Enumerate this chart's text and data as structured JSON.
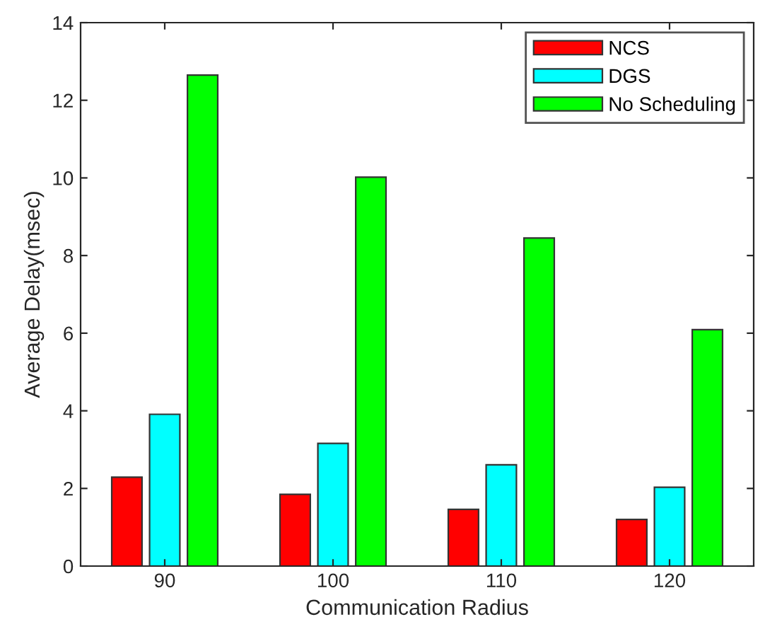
{
  "chart_data": {
    "type": "bar",
    "xlabel": "Communication Radius",
    "ylabel": "Average Delay(msec)",
    "categories": [
      "90",
      "100",
      "110",
      "120"
    ],
    "series": [
      {
        "name": "NCS",
        "color": "#ff0000",
        "values": [
          2.29,
          1.85,
          1.46,
          1.2
        ]
      },
      {
        "name": "DGS",
        "color": "#00ffff",
        "values": [
          3.91,
          3.16,
          2.61,
          2.03
        ]
      },
      {
        "name": "No Scheduling",
        "color": "#00ff00",
        "values": [
          12.65,
          10.02,
          8.45,
          6.09
        ]
      }
    ],
    "ylim": [
      0,
      14
    ],
    "yticks": [
      0,
      2,
      4,
      6,
      8,
      10,
      12,
      14
    ],
    "grid": false,
    "legend": "top right"
  }
}
